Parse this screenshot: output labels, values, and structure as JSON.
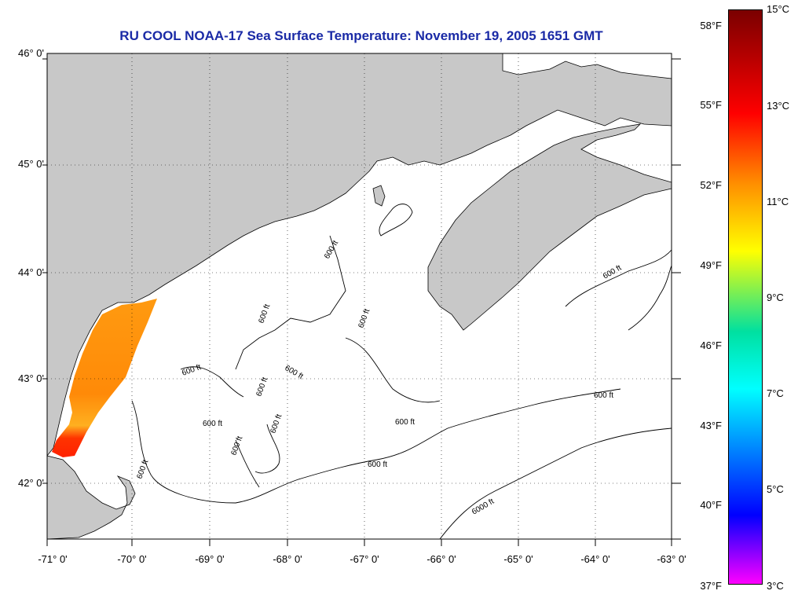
{
  "title": "RU COOL  NOAA-17  Sea Surface Temperature:  November 19, 2005 1651 GMT",
  "map": {
    "lat_labels": [
      "46° 0'",
      "45° 0'",
      "44° 0'",
      "43° 0'",
      "42° 0'"
    ],
    "lon_labels": [
      "-71° 0'",
      "-70° 0'",
      "-69° 0'",
      "-68° 0'",
      "-67° 0'",
      "-66° 0'",
      "-65° 0'",
      "-64° 0'",
      "-63° 0'"
    ],
    "contour_labels": [
      "600 ft",
      "600 ft",
      "600 ft",
      "600 ft",
      "600 ft",
      "600 ft",
      "600 ft",
      "600 ft",
      "600 ft",
      "600 ft",
      "600 ft",
      "600 ft",
      "600 ft",
      "600 ft",
      "6000 ft"
    ],
    "land_color": "#c8c8c8",
    "ocean_color": "#ffffff"
  },
  "colorbar": {
    "fahrenheit_labels": [
      "58°F",
      "55°F",
      "52°F",
      "49°F",
      "46°F",
      "43°F",
      "40°F",
      "37°F"
    ],
    "celsius_labels": [
      "15°C",
      "13°C",
      "11°C",
      "9°C",
      "7°C",
      "5°C",
      "3°C"
    ],
    "colors": [
      "#7a0000",
      "#ff0000",
      "#ff8c00",
      "#ffff00",
      "#00e0a0",
      "#00ffff",
      "#0000ff",
      "#ff00ff"
    ]
  }
}
